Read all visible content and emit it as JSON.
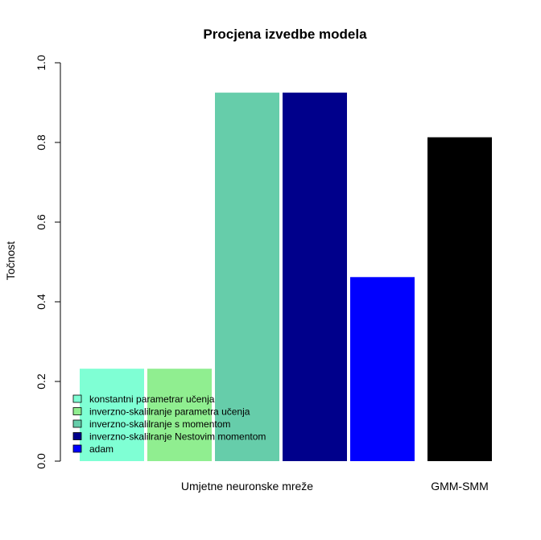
{
  "chart_data": {
    "type": "bar",
    "title": "Procjena izvedbe modela",
    "xlabel": "",
    "ylabel": "Točnost",
    "ylim": [
      0,
      1
    ],
    "yticks": [
      "0.0",
      "0.2",
      "0.4",
      "0.6",
      "0.8",
      "1.0"
    ],
    "ytick_values": [
      0,
      0.2,
      0.4,
      0.6,
      0.8,
      1.0
    ],
    "grid": false,
    "legend_position": "bottom-left",
    "groups": [
      {
        "label": "Umjetne neuronske mreže",
        "bars": [
          {
            "series": "konstantni parametrar učenja",
            "value": 0.232
          },
          {
            "series": "inverzno-skalilranje parametra učenja",
            "value": 0.232
          },
          {
            "series": "inverzno-skalilranje s momentom",
            "value": 0.925
          },
          {
            "series": "inverzno-skalilranje Nestovim momentom",
            "value": 0.925
          },
          {
            "series": "adam",
            "value": 0.462
          }
        ]
      },
      {
        "label": "GMM-SMM",
        "bars": [
          {
            "series": "GMM-SMM",
            "value": 0.813
          }
        ]
      }
    ],
    "series": [
      {
        "name": "konstantni parametrar učenja",
        "color": "#7FFFD4"
      },
      {
        "name": "inverzno-skalilranje parametra učenja",
        "color": "#90EE90"
      },
      {
        "name": "inverzno-skalilranje s momentom",
        "color": "#66CDAA"
      },
      {
        "name": "inverzno-skalilranje Nestovim momentom",
        "color": "#00008B"
      },
      {
        "name": "adam",
        "color": "#0000FF"
      },
      {
        "name": "GMM-SMM",
        "color": "#000000"
      }
    ],
    "legend": [
      {
        "label": "konstantni parametrar učenja",
        "color": "#7FFFD4"
      },
      {
        "label": "inverzno-skalilranje parametra učenja",
        "color": "#90EE90"
      },
      {
        "label": "inverzno-skalilranje s momentom",
        "color": "#66CDAA"
      },
      {
        "label": "inverzno-skalilranje Nestovim momentom",
        "color": "#00008B"
      },
      {
        "label": "adam",
        "color": "#0000FF"
      }
    ]
  }
}
